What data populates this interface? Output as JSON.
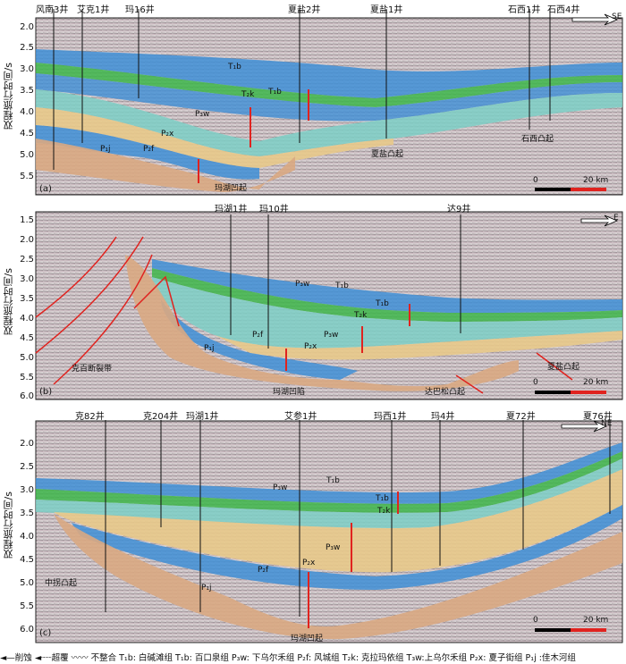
{
  "axis_label": "双程旅行时间/s",
  "panels": [
    {
      "letter": "(a)",
      "wells": [
        "风南3井",
        "艾克1井",
        "玛16井",
        "夏盐2井",
        "夏盐1井",
        "石西1井",
        "石西4井"
      ],
      "ticks": [
        "2.0",
        "2.5",
        "3.0",
        "3.5",
        "4.0",
        "4.5",
        "5.0",
        "5.5"
      ],
      "direction": "SE",
      "scale": [
        "0",
        "20 km"
      ],
      "labels": {
        "t1b": "T₁b",
        "t2k": "T₂k",
        "t3b": "T₁b",
        "p3w": "P₃w",
        "p2x": "P₂x",
        "p2f": "P₂f",
        "p1j": "P₁j",
        "xiayan": "夏盐凸起",
        "shixi": "石西凸起",
        "mahu": "玛湖凹起"
      }
    },
    {
      "letter": "(b)",
      "wells": [
        "玛湖1井",
        "玛10井",
        "达9井"
      ],
      "ticks": [
        "1.5",
        "2.0",
        "2.5",
        "3.0",
        "3.5",
        "4.0",
        "4.5",
        "5.0",
        "5.5",
        "6.0"
      ],
      "direction": "E",
      "scale": [
        "0",
        "20 km"
      ],
      "labels": {
        "p3w": "P₃w",
        "t1b_a": "T₁b",
        "t1b_b": "T₁b",
        "t2k": "T₂k",
        "p2f": "P₂f",
        "p1j": "P₁j",
        "p2x": "P₂x",
        "p3w_b": "P₃w",
        "kebai": "克百断裂带",
        "mahu": "玛湖凹陷",
        "xiayan": "夏盐凸起",
        "dabasong": "达巴松凸起"
      }
    },
    {
      "letter": "(c)",
      "wells": [
        "克82井",
        "克204井",
        "玛湖1井",
        "艾参1井",
        "玛西1井",
        "玛4井",
        "夏72井",
        "夏76井"
      ],
      "ticks": [
        "2.0",
        "2.5",
        "3.0",
        "3.5",
        "4.0",
        "4.5",
        "5.0",
        "5.5",
        "6.0"
      ],
      "direction": "NE",
      "scale": [
        "0",
        "20 km"
      ],
      "labels": {
        "p3w": "P₃w",
        "t1b": "T₁b",
        "t3b": "T₁b",
        "t2k": "T₂k",
        "p3w_b": "P₃w",
        "p2x": "P₂x",
        "p2f": "P₂f",
        "p1j": "P₁j",
        "zhongguai": "中拐凸起",
        "mahu": "玛湖凹起"
      }
    }
  ],
  "legend": "◄—削蚀  ◄┈┈超覆  〰〰 不整合 T₁b: 白碱滩组 T₁b: 百口泉组 P₃w: 下乌尔禾组 P₂f: 风城组 T₂k: 克拉玛依组 T₃w:上乌尔禾组 P₂x: 夏子街组 P₁j :佳木河组",
  "colors": {
    "blue": "#3f8fd6",
    "teal": "#7ccfc6",
    "green": "#3db64a",
    "tan": "#e8c98a",
    "brown": "#d9a982",
    "red": "#e0231f",
    "seismic": "#c9c2c4"
  }
}
